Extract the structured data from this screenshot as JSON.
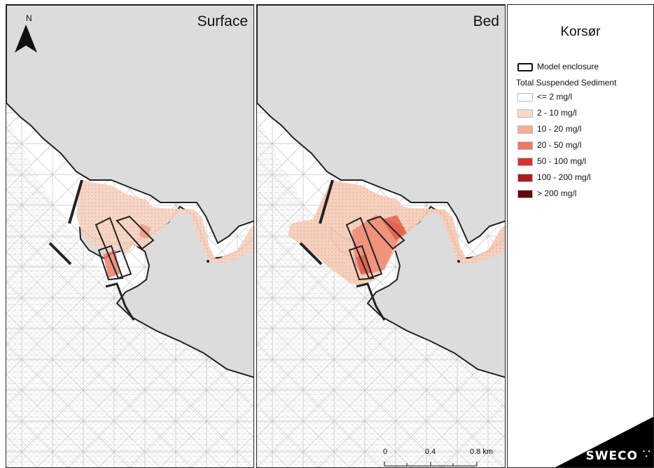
{
  "panels": [
    {
      "title": "Surface"
    },
    {
      "title": "Bed"
    }
  ],
  "north": {
    "label": "N",
    "icon": "north-arrow-icon"
  },
  "legend": {
    "title": "Korsør",
    "enclosure_label": "Model enclosure",
    "heading": "Total Suspended Sediment",
    "classes": [
      {
        "label": "<= 2 mg/l",
        "color": "#ffffff"
      },
      {
        "label": "2 - 10 mg/l",
        "color": "#fcd9c6"
      },
      {
        "label": "10 - 20 mg/l",
        "color": "#f5ad96"
      },
      {
        "label": "20 - 50 mg/l",
        "color": "#ee7a64"
      },
      {
        "label": "50 - 100 mg/l",
        "color": "#d9312b"
      },
      {
        "label": "100 - 200 mg/l",
        "color": "#b01720"
      },
      {
        "label": "> 200 mg/l",
        "color": "#67000d"
      }
    ]
  },
  "scalebar": {
    "labels": [
      "0",
      "0.4",
      "0.8 km"
    ]
  },
  "brand": {
    "name": "SWECO",
    "icon": "sweco-logo-icon"
  },
  "colors": {
    "land": "#dcdcdc",
    "mesh": "#b9b9b9",
    "coast": "#222222",
    "brand_bg": "#000000"
  }
}
